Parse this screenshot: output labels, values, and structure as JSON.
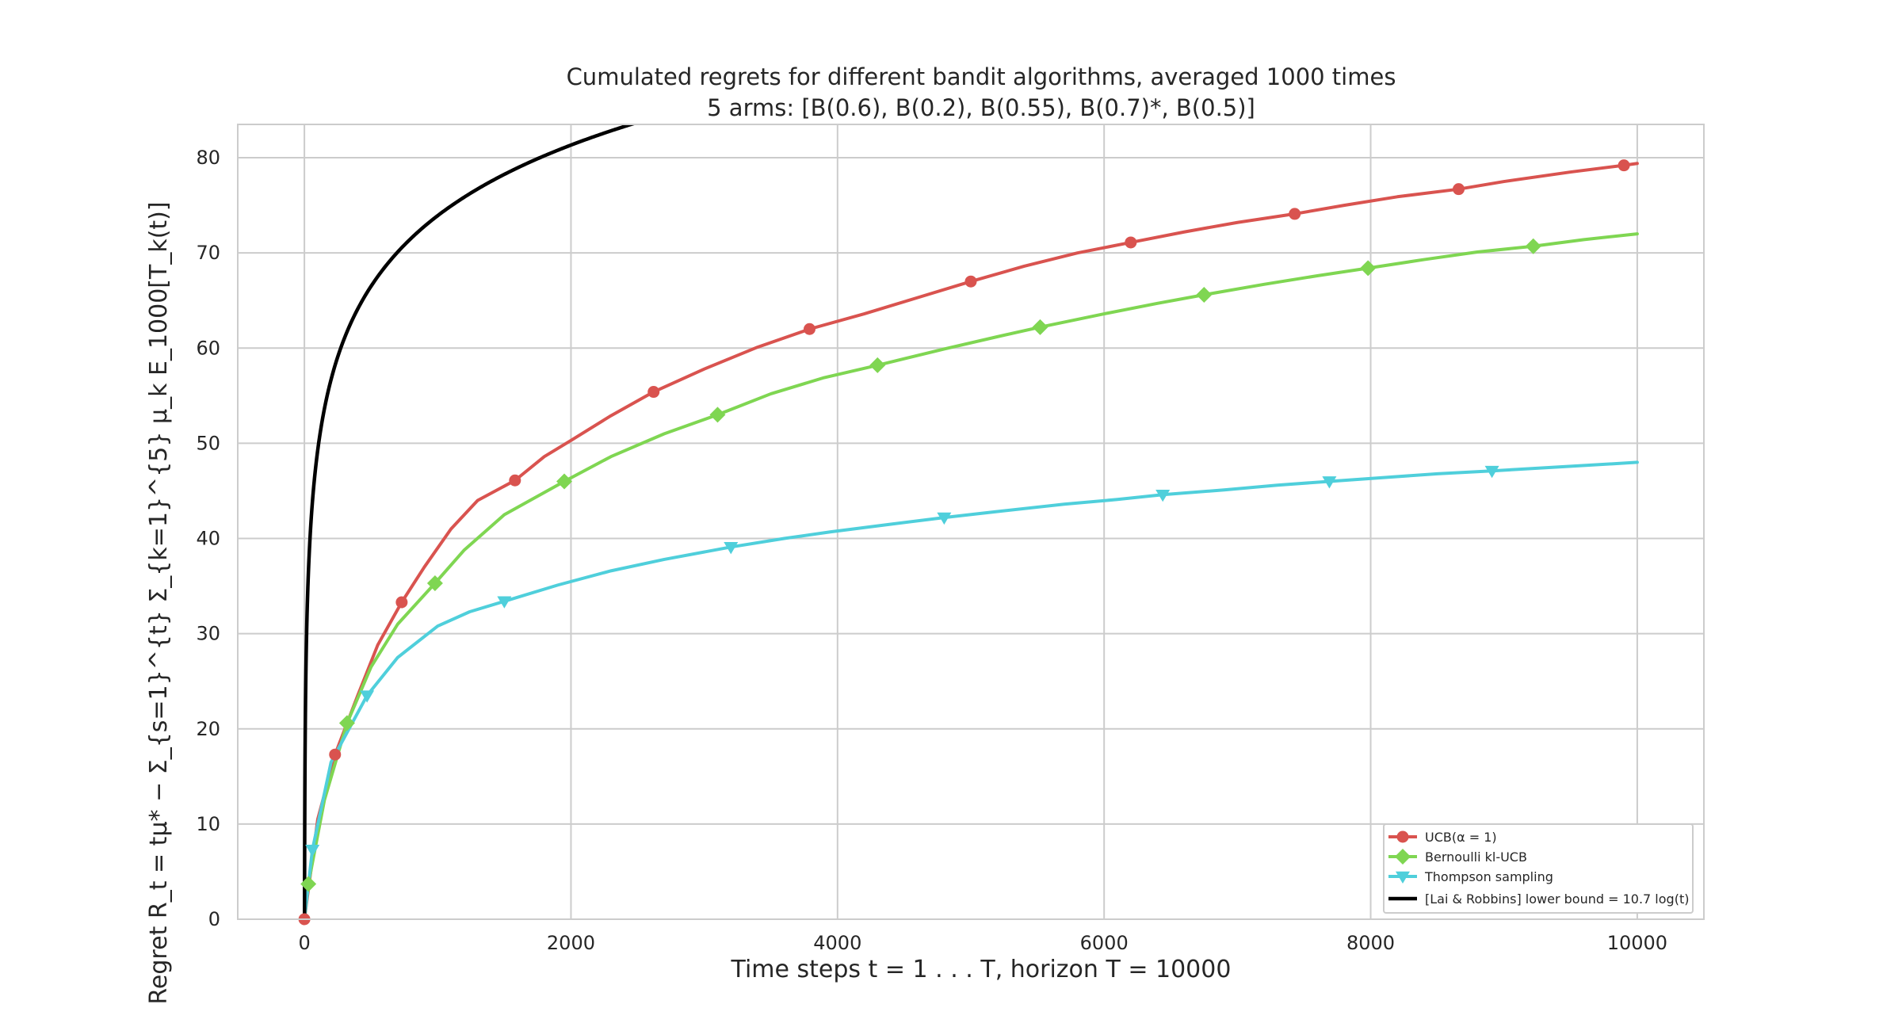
{
  "chart_data": {
    "type": "line",
    "title": "Cumulated regrets for different bandit algorithms, averaged 1000 times",
    "subtitle": "5 arms: [B(0.6), B(0.2), B(0.55), B(0.7)*, B(0.5)]",
    "xlabel": "Time steps t = 1 . . . T, horizon T = 10000",
    "ylabel": "Regret R_t = tμ* − Σ_{s=1}^{t} Σ_{k=1}^{5} μ_k E_1000[T_k(t)]",
    "xlim": [
      -500,
      10500
    ],
    "ylim": [
      0,
      83.5
    ],
    "xticks": [
      0,
      2000,
      4000,
      6000,
      8000,
      10000
    ],
    "yticks": [
      0,
      10,
      20,
      30,
      40,
      50,
      60,
      70,
      80
    ],
    "grid": true,
    "legend_position": "bottom-right",
    "series": [
      {
        "name": "UCB(α = 1)",
        "color": "#d9534f",
        "marker": "circle",
        "x": [
          0,
          100,
          230,
          400,
          550,
          730,
          900,
          1100,
          1300,
          1580,
          1800,
          2000,
          2300,
          2620,
          3000,
          3400,
          3790,
          4200,
          4600,
          5000,
          5400,
          5800,
          6200,
          6600,
          7000,
          7430,
          7800,
          8200,
          8660,
          9000,
          9500,
          9900,
          10000
        ],
        "y": [
          0,
          10.5,
          17.3,
          23.5,
          28.8,
          33.3,
          37,
          41,
          44,
          46.1,
          48.6,
          50.3,
          52.9,
          55.4,
          57.8,
          60.1,
          62,
          63.6,
          65.3,
          67,
          68.6,
          70,
          71.1,
          72.2,
          73.2,
          74.1,
          75,
          75.9,
          76.7,
          77.5,
          78.5,
          79.2,
          79.4
        ]
      },
      {
        "name": "Bernoulli kl-UCB",
        "color": "#7fd652",
        "marker": "diamond",
        "x": [
          0,
          30,
          150,
          320,
          500,
          700,
          980,
          1200,
          1500,
          1950,
          2300,
          2700,
          3100,
          3500,
          3900,
          4300,
          4800,
          5200,
          5520,
          6000,
          6400,
          6750,
          7200,
          7600,
          7980,
          8400,
          8800,
          9220,
          9600,
          10000
        ],
        "y": [
          0,
          3.7,
          12.5,
          20.6,
          26.5,
          31,
          35.3,
          38.8,
          42.5,
          46,
          48.6,
          51,
          53,
          55.2,
          56.9,
          58.2,
          59.9,
          61.2,
          62.2,
          63.6,
          64.7,
          65.6,
          66.7,
          67.6,
          68.4,
          69.3,
          70.1,
          70.7,
          71.4,
          72
        ]
      },
      {
        "name": "Thompson sampling",
        "color": "#4fcfdb",
        "marker": "triangle-down",
        "x": [
          0,
          60,
          200,
          470,
          700,
          1000,
          1240,
          1500,
          1900,
          2300,
          2700,
          3200,
          3600,
          3950,
          4400,
          4800,
          5180,
          5700,
          6100,
          6440,
          6900,
          7300,
          7690,
          8100,
          8500,
          8910,
          9400,
          10000
        ],
        "y": [
          0,
          7.3,
          16.5,
          23.5,
          27.5,
          30.8,
          32.3,
          33.4,
          35.1,
          36.6,
          37.8,
          39.1,
          40,
          40.7,
          41.5,
          42.2,
          42.8,
          43.6,
          44.1,
          44.6,
          45.1,
          45.6,
          46,
          46.4,
          46.8,
          47.1,
          47.5,
          48
        ]
      },
      {
        "name": "[Lai & Robbins] lower bound = 10.7 log(t)",
        "color": "#000000",
        "marker": "none",
        "coefficient": 10.7,
        "x_start": 1,
        "x_end": 2500
      }
    ],
    "marker_indices": {
      "UCB(α = 1)": [
        0,
        2,
        5,
        9,
        13,
        16,
        19,
        22,
        25,
        28,
        31
      ],
      "Bernoulli kl-UCB": [
        1,
        3,
        6,
        9,
        12,
        15,
        18,
        21,
        24,
        27
      ],
      "Thompson sampling": [
        1,
        3,
        7,
        11,
        15,
        19,
        22,
        25
      ]
    }
  }
}
